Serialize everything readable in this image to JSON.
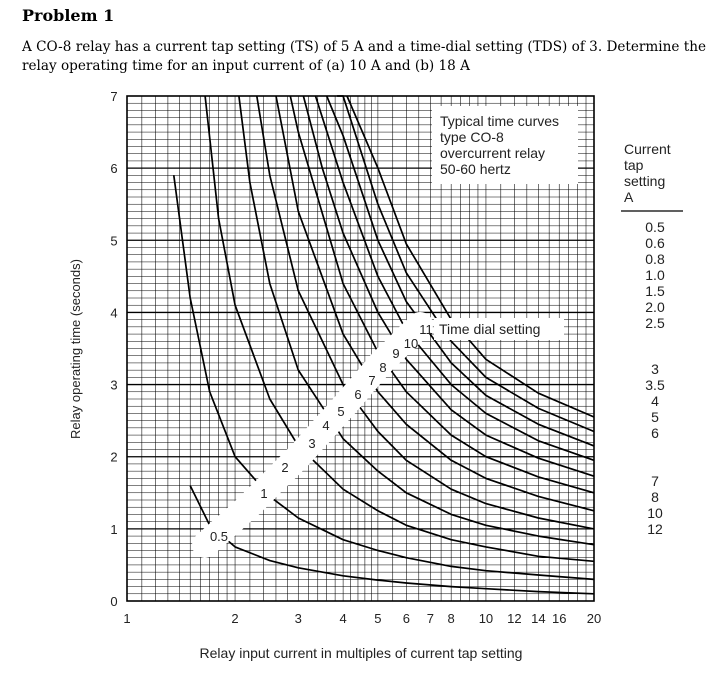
{
  "problem": {
    "heading": "Problem 1",
    "statement": "A CO-8 relay has a current tap setting (TS) of 5 A and a time-dial setting (TDS) of 3. Determine the relay operating time for an input current of (a) 10 A and (b) 18 A"
  },
  "chart_data": {
    "type": "line",
    "x_scale": "log",
    "xlabel": "Relay input current in multiples of current tap setting",
    "ylabel": "Relay operating time (seconds)",
    "xlim": [
      1,
      20
    ],
    "ylim": [
      0,
      7
    ],
    "x_ticks": [
      1,
      2,
      3,
      4,
      5,
      6,
      7,
      8,
      10,
      12,
      14,
      16,
      20
    ],
    "x_tick_labels": [
      "1",
      "2",
      "3",
      "4",
      "5",
      "6",
      "7",
      "8",
      "10",
      "12",
      "14",
      "16",
      "20"
    ],
    "y_ticks": [
      0,
      1,
      2,
      3,
      4,
      5,
      6,
      7
    ],
    "y_tick_labels": [
      "0",
      "1",
      "2",
      "3",
      "4",
      "5",
      "6",
      "7"
    ],
    "grid": true,
    "title_box": [
      "Typical time curves",
      "type CO-8",
      "overcurrent relay",
      "50-60 hertz"
    ],
    "time_dial_label": "Time dial setting",
    "tap_header": [
      "Current",
      "tap",
      "setting",
      "A"
    ],
    "tap_settings": [
      "0.5",
      "0.6",
      "0.8",
      "1.0",
      "1.5",
      "2.0",
      "2.5",
      "3",
      "3.5",
      "4",
      "5",
      "6",
      "7",
      "8",
      "10",
      "12"
    ],
    "series": [
      {
        "name": "0.5",
        "x": [
          1.5,
          1.7,
          2.0,
          2.5,
          3,
          4,
          5,
          6,
          8,
          10,
          14,
          20
        ],
        "y": [
          1.6,
          1.05,
          0.75,
          0.56,
          0.46,
          0.35,
          0.29,
          0.25,
          0.2,
          0.17,
          0.13,
          0.1
        ]
      },
      {
        "name": "1",
        "x": [
          1.35,
          1.5,
          1.7,
          2.0,
          2.5,
          3,
          4,
          5,
          6,
          8,
          10,
          14,
          20
        ],
        "y": [
          5.9,
          4.2,
          2.9,
          2.0,
          1.45,
          1.15,
          0.85,
          0.7,
          0.6,
          0.48,
          0.42,
          0.36,
          0.3
        ]
      },
      {
        "name": "2",
        "x": [
          1.65,
          1.8,
          2.0,
          2.5,
          3,
          4,
          5,
          6,
          8,
          10,
          14,
          20
        ],
        "y": [
          7.0,
          5.3,
          4.1,
          2.8,
          2.15,
          1.55,
          1.25,
          1.05,
          0.85,
          0.75,
          0.62,
          0.55
        ]
      },
      {
        "name": "3",
        "x": [
          2.05,
          2.2,
          2.5,
          3,
          4,
          5,
          6,
          8,
          10,
          14,
          20
        ],
        "y": [
          7.0,
          5.8,
          4.4,
          3.2,
          2.25,
          1.8,
          1.5,
          1.2,
          1.05,
          0.9,
          0.78
        ]
      },
      {
        "name": "4",
        "x": [
          2.3,
          2.5,
          3,
          4,
          5,
          6,
          8,
          10,
          14,
          20
        ],
        "y": [
          7.0,
          5.9,
          4.3,
          3.0,
          2.35,
          1.95,
          1.55,
          1.35,
          1.15,
          1.0
        ]
      },
      {
        "name": "5",
        "x": [
          2.6,
          3,
          4,
          5,
          6,
          8,
          10,
          14,
          20
        ],
        "y": [
          7.0,
          5.4,
          3.7,
          2.9,
          2.45,
          1.95,
          1.7,
          1.45,
          1.25
        ]
      },
      {
        "name": "6",
        "x": [
          2.85,
          3,
          4,
          5,
          6,
          8,
          10,
          14,
          20
        ],
        "y": [
          7.0,
          6.5,
          4.4,
          3.45,
          2.9,
          2.3,
          2.0,
          1.72,
          1.5
        ]
      },
      {
        "name": "7",
        "x": [
          3.1,
          3.5,
          4,
          5,
          6,
          8,
          10,
          14,
          20
        ],
        "y": [
          7.0,
          6.0,
          5.1,
          4.0,
          3.35,
          2.65,
          2.3,
          1.98,
          1.73
        ]
      },
      {
        "name": "8",
        "x": [
          3.35,
          4,
          5,
          6,
          8,
          10,
          14,
          20
        ],
        "y": [
          7.0,
          5.8,
          4.5,
          3.75,
          3.0,
          2.6,
          2.22,
          1.95
        ]
      },
      {
        "name": "9",
        "x": [
          3.6,
          4,
          5,
          6,
          8,
          10,
          14,
          20
        ],
        "y": [
          7.0,
          6.45,
          5.0,
          4.15,
          3.3,
          2.85,
          2.45,
          2.15
        ]
      },
      {
        "name": "10",
        "x": [
          3.85,
          4,
          5,
          6,
          8,
          10,
          14,
          20
        ],
        "y": [
          7.0,
          7.0,
          5.5,
          4.55,
          3.6,
          3.1,
          2.67,
          2.35
        ]
      },
      {
        "name": "11",
        "x": [
          4.1,
          5,
          6,
          8,
          10,
          14,
          20
        ],
        "y": [
          7.0,
          6.0,
          4.95,
          3.9,
          3.35,
          2.88,
          2.55
        ]
      }
    ]
  }
}
